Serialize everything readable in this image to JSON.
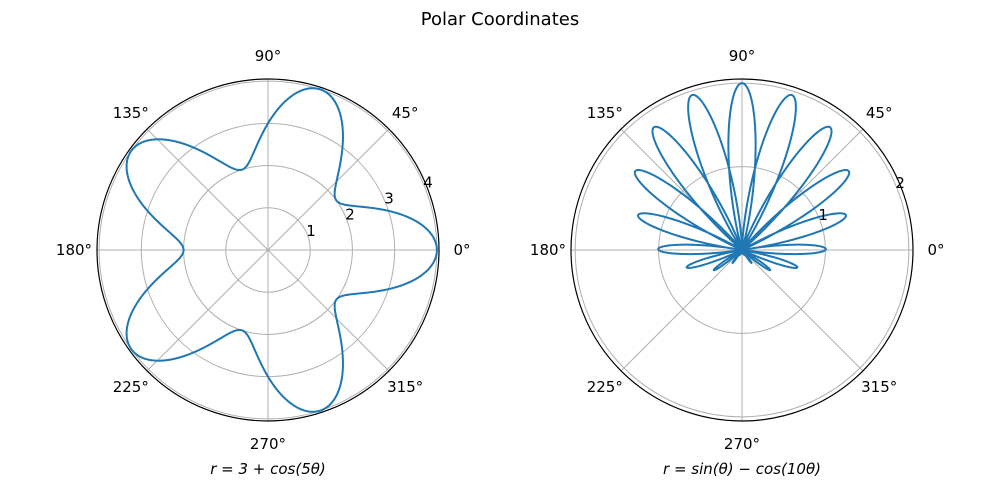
{
  "figure": {
    "suptitle": "Polar Coordinates"
  },
  "colors": {
    "line": "#1f77b4",
    "grid": "#b0b0b0",
    "spine": "#000000"
  },
  "chart_data": [
    {
      "type": "line",
      "projection": "polar",
      "xlabel": "r = 3 + cos(5θ)",
      "equation": {
        "a": 3,
        "b": 1,
        "fn_a": "const",
        "fn_b": "cos",
        "k": 5
      },
      "rlim": [
        0,
        4.05
      ],
      "r_ticks": [
        1,
        2,
        3,
        4
      ],
      "r_tick_labels": [
        "1",
        "2",
        "3",
        "4"
      ],
      "theta_ticks_deg": [
        0,
        45,
        90,
        135,
        180,
        225,
        270,
        315
      ],
      "theta_tick_labels": [
        "0°",
        "45°",
        "90°",
        "135°",
        "180°",
        "225°",
        "270°",
        "315°"
      ],
      "grid": true
    },
    {
      "type": "line",
      "projection": "polar",
      "xlabel": "r = sin(θ) − cos(10θ)",
      "equation": {
        "fn": "sin_minus_cos",
        "k": 10
      },
      "rlim": [
        0,
        2.05
      ],
      "r_ticks": [
        1,
        2
      ],
      "r_tick_labels": [
        "1",
        "2"
      ],
      "theta_ticks_deg": [
        0,
        45,
        90,
        135,
        180,
        225,
        270,
        315
      ],
      "theta_tick_labels": [
        "0°",
        "45°",
        "90°",
        "135°",
        "180°",
        "225°",
        "270°",
        "315°"
      ],
      "grid": true
    }
  ]
}
